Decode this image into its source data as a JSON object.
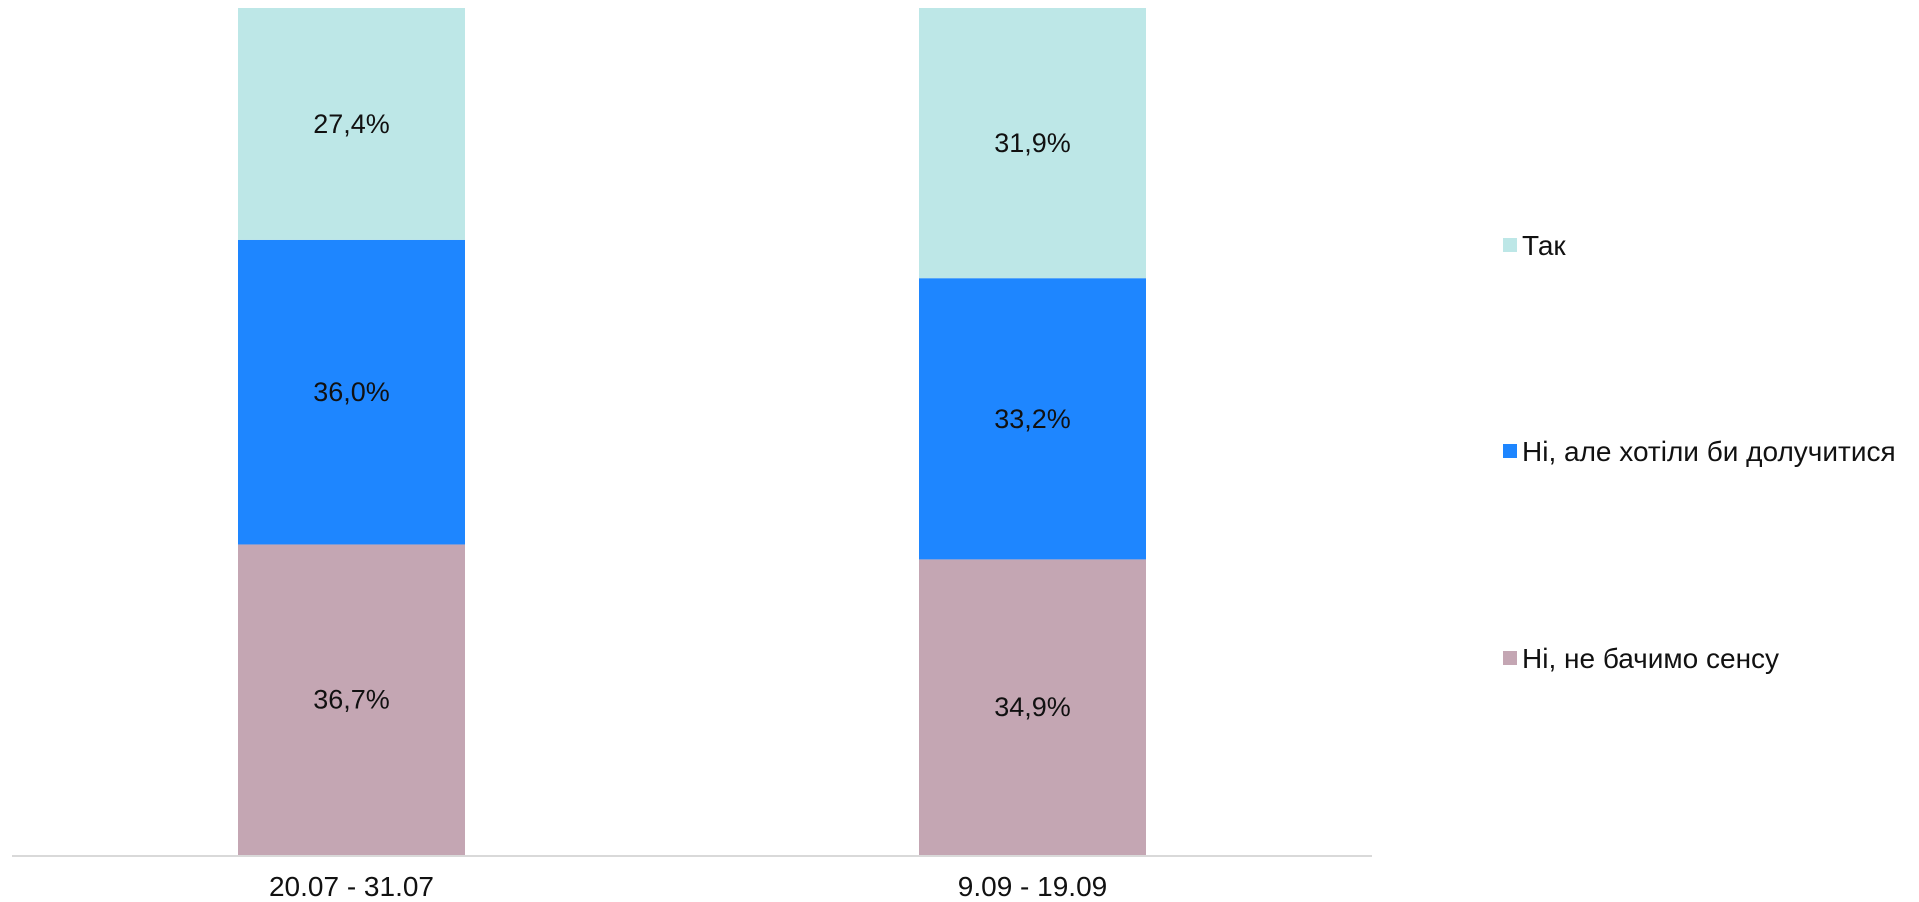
{
  "chart_data": {
    "type": "bar",
    "stacked": true,
    "orientation": "vertical",
    "categories": [
      "20.07 - 31.07",
      "9.09 - 19.09"
    ],
    "series": [
      {
        "name": "Ні, не бачимо сенсу",
        "values": [
          36.7,
          34.9
        ],
        "labels": [
          "36,7%",
          "34,9%"
        ],
        "color": "#c4a6b3"
      },
      {
        "name": "Ні, але хотіли би долучитися",
        "values": [
          36.0,
          33.2
        ],
        "labels": [
          "36,0%",
          "33,2%"
        ],
        "color": "#1e86ff"
      },
      {
        "name": "Так",
        "values": [
          27.4,
          31.9
        ],
        "labels": [
          "27,4%",
          "31,9%"
        ],
        "color": "#bde7e7"
      }
    ],
    "legend_order": [
      "Так",
      "Ні, але хотіли би долучитися",
      "Ні, не бачимо сенсу"
    ],
    "ylim": [
      0,
      100
    ],
    "grid": false,
    "legend_position": "right"
  }
}
